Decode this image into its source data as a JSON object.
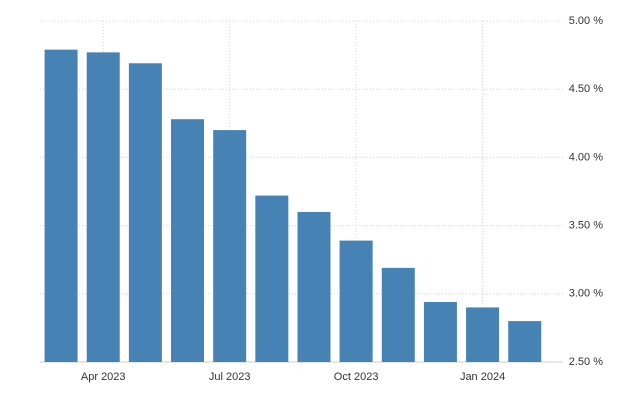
{
  "chart_data": {
    "type": "bar",
    "categories": [
      null,
      "Apr 2023",
      null,
      null,
      "Jul 2023",
      null,
      null,
      "Oct 2023",
      null,
      null,
      "Jan 2024",
      null
    ],
    "values": [
      4.79,
      4.77,
      4.69,
      4.28,
      4.2,
      3.72,
      3.6,
      3.39,
      3.19,
      2.94,
      2.9,
      2.8
    ],
    "color": "#4682b4",
    "ylim": [
      2.5,
      5.0
    ],
    "yticks": [
      {
        "value": 2.5,
        "label": "2.50 %"
      },
      {
        "value": 3.0,
        "label": "3.00 %"
      },
      {
        "value": 3.5,
        "label": "3.50 %"
      },
      {
        "value": 4.0,
        "label": "4.00 %"
      },
      {
        "value": 4.5,
        "label": "4.50 %"
      },
      {
        "value": 5.0,
        "label": "5.00 %"
      }
    ],
    "grid": true
  }
}
